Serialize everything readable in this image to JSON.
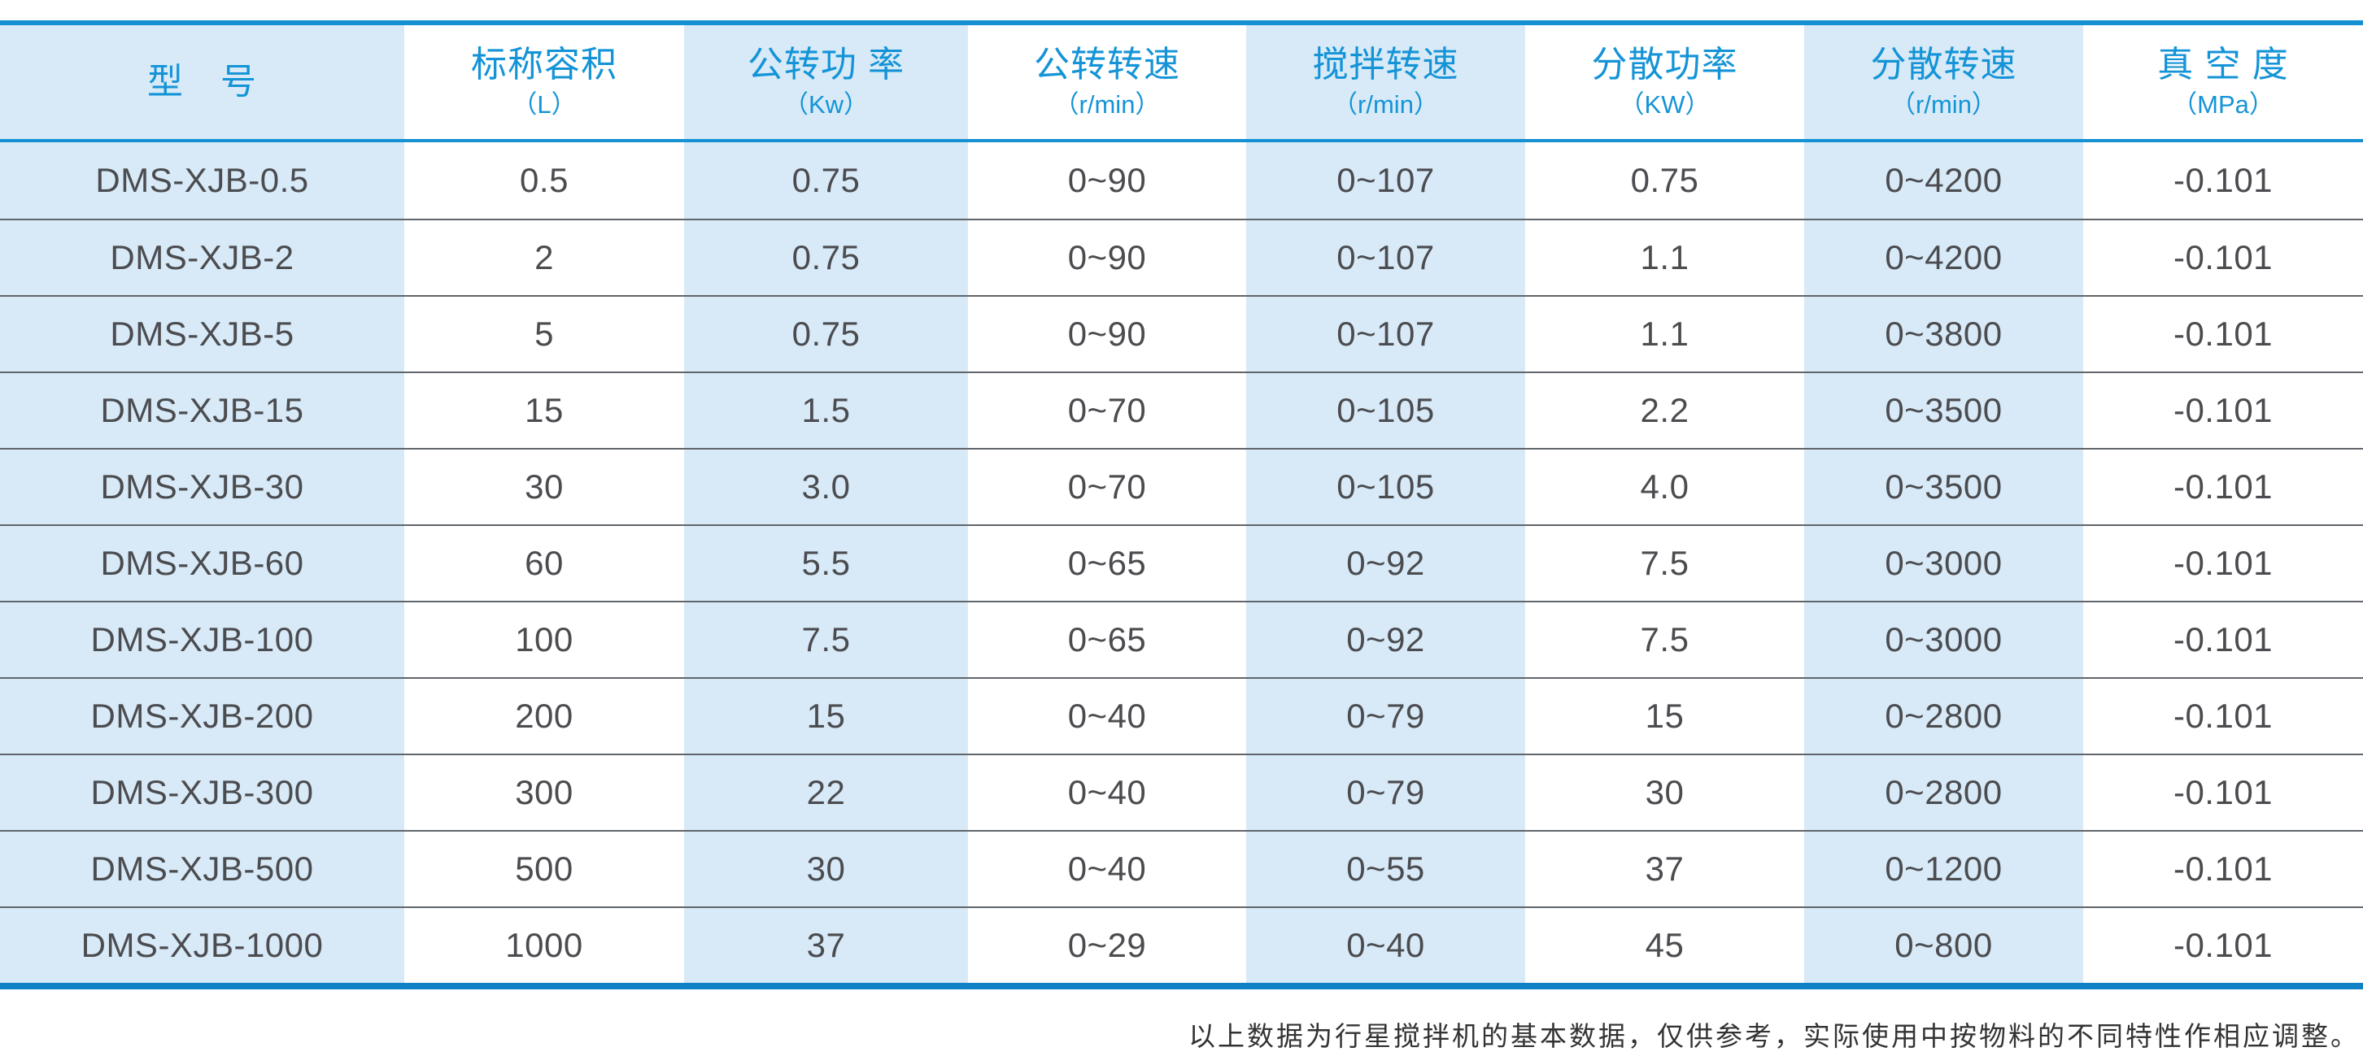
{
  "table": {
    "columns": [
      {
        "title": "型　号",
        "unit": ""
      },
      {
        "title": "标称容积",
        "unit": "（L）"
      },
      {
        "title": "公转功 率",
        "unit": "（Kw）"
      },
      {
        "title": "公转转速",
        "unit": "（r/min）"
      },
      {
        "title": "搅拌转速",
        "unit": "（r/min）"
      },
      {
        "title": "分散功率",
        "unit": "（KW）"
      },
      {
        "title": "分散转速",
        "unit": "（r/min）"
      },
      {
        "title": "真 空 度",
        "unit": "（MPa）"
      }
    ],
    "rows": [
      [
        "DMS-XJB-0.5",
        "0.5",
        "0.75",
        "0~90",
        "0~107",
        "0.75",
        "0~4200",
        "-0.101"
      ],
      [
        "DMS-XJB-2",
        "2",
        "0.75",
        "0~90",
        "0~107",
        "1.1",
        "0~4200",
        "-0.101"
      ],
      [
        "DMS-XJB-5",
        "5",
        "0.75",
        "0~90",
        "0~107",
        "1.1",
        "0~3800",
        "-0.101"
      ],
      [
        "DMS-XJB-15",
        "15",
        "1.5",
        "0~70",
        "0~105",
        "2.2",
        "0~3500",
        "-0.101"
      ],
      [
        "DMS-XJB-30",
        "30",
        "3.0",
        "0~70",
        "0~105",
        "4.0",
        "0~3500",
        "-0.101"
      ],
      [
        "DMS-XJB-60",
        "60",
        "5.5",
        "0~65",
        "0~92",
        "7.5",
        "0~3000",
        "-0.101"
      ],
      [
        "DMS-XJB-100",
        "100",
        "7.5",
        "0~65",
        "0~92",
        "7.5",
        "0~3000",
        "-0.101"
      ],
      [
        "DMS-XJB-200",
        "200",
        "15",
        "0~40",
        "0~79",
        "15",
        "0~2800",
        "-0.101"
      ],
      [
        "DMS-XJB-300",
        "300",
        "22",
        "0~40",
        "0~79",
        "30",
        "0~2800",
        "-0.101"
      ],
      [
        "DMS-XJB-500",
        "500",
        "30",
        "0~40",
        "0~55",
        "37",
        "0~1200",
        "-0.101"
      ],
      [
        "DMS-XJB-1000",
        "1000",
        "37",
        "0~29",
        "0~40",
        "45",
        "0~800",
        "-0.101"
      ]
    ],
    "footnote": "以上数据为行星搅拌机的基本数据，仅供参考，实际使用中按物料的不同特性作相应调整。"
  },
  "colors": {
    "accent_blue": "#1591d2",
    "header_text_blue": "#1494d7",
    "stripe_light_blue": "#d8eaf7",
    "row_divider_gray": "#60656b",
    "body_text_gray": "#4b4c50"
  }
}
